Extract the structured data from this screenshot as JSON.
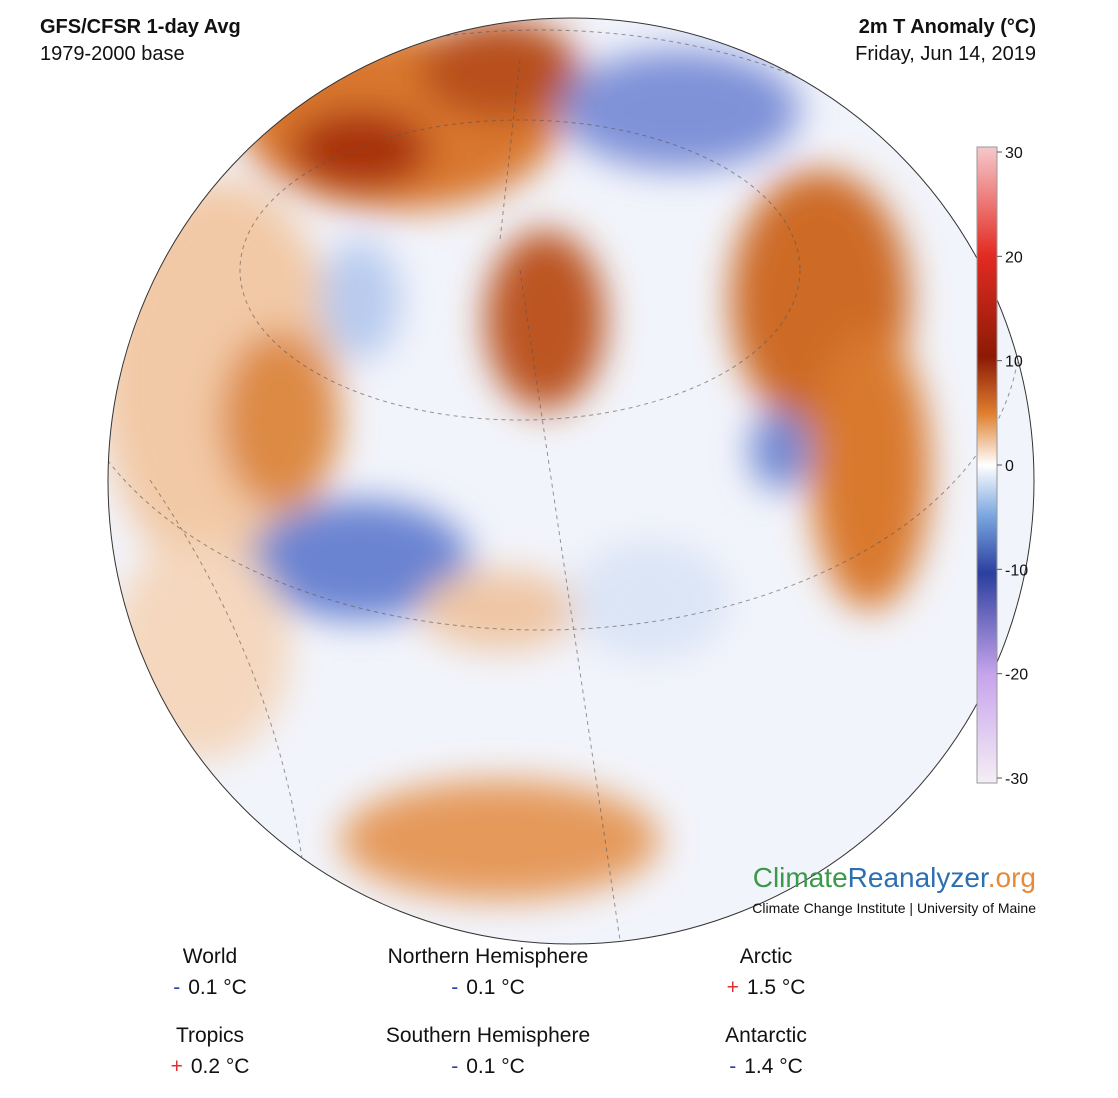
{
  "header": {
    "title": "GFS/CFSR 1-day Avg",
    "subtitle": "1979-2000 base",
    "variable": "2m T Anomaly (°C)",
    "date": "Friday, Jun 14, 2019"
  },
  "colorbar": {
    "lim": [
      -30,
      30
    ],
    "ticks": [
      30,
      20,
      10,
      0,
      -10,
      -20,
      -30
    ]
  },
  "logo": {
    "part1": "Climate",
    "part2": "Reanalyzer",
    "part3": ".org",
    "tagline": "Climate Change Institute | University of Maine"
  },
  "stats": [
    {
      "name": "World",
      "sign": "-",
      "value": "0.1 °C",
      "sign_color": "#2a3fb0"
    },
    {
      "name": "Northern Hemisphere",
      "sign": "-",
      "value": "0.1 °C",
      "sign_color": "#2a3fb0"
    },
    {
      "name": "Arctic",
      "sign": "+",
      "value": "1.5 °C",
      "sign_color": "#e03030"
    },
    {
      "name": "Tropics",
      "sign": "+",
      "value": "0.2 °C",
      "sign_color": "#e03030"
    },
    {
      "name": "Southern Hemisphere",
      "sign": "-",
      "value": "0.1 °C",
      "sign_color": "#2a3fb0"
    },
    {
      "name": "Antarctic",
      "sign": "-",
      "value": "1.4 °C",
      "sign_color": "#2a3fb0"
    }
  ]
}
